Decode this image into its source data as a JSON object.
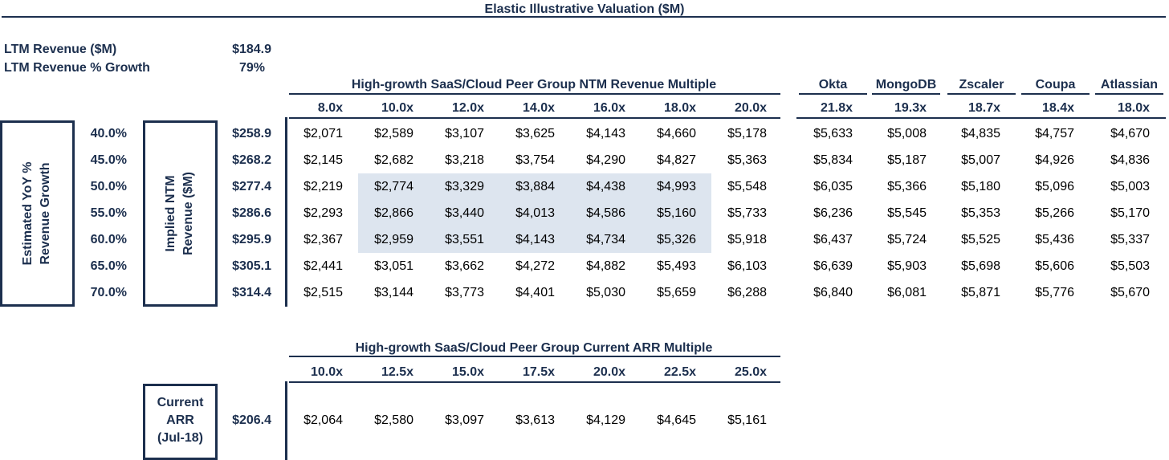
{
  "title": "Elastic Illustrative Valuation ($M)",
  "summary": {
    "ltm_revenue_label": "LTM Revenue ($M)",
    "ltm_revenue_value": "$184.9",
    "ltm_growth_label": "LTM Revenue % Growth",
    "ltm_growth_value": "79%"
  },
  "ntm": {
    "group_header": "High-growth SaaS/Cloud Peer Group NTM Revenue Multiple",
    "multiples": [
      "8.0x",
      "10.0x",
      "12.0x",
      "14.0x",
      "16.0x",
      "18.0x",
      "20.0x"
    ],
    "peers": [
      {
        "name": "Okta",
        "multiple": "21.8x"
      },
      {
        "name": "MongoDB",
        "multiple": "19.3x"
      },
      {
        "name": "Zscaler",
        "multiple": "18.7x"
      },
      {
        "name": "Coupa",
        "multiple": "18.4x"
      },
      {
        "name": "Atlassian",
        "multiple": "18.0x"
      }
    ],
    "growth_box_label_1": "Estimated YoY %",
    "growth_box_label_2": "Revenue Growth",
    "revenue_box_label_1": "Implied NTM",
    "revenue_box_label_2": "Revenue ($M)",
    "rows": [
      {
        "growth": "40.0%",
        "revenue": "$258.9",
        "values": [
          "$2,071",
          "$2,589",
          "$3,107",
          "$3,625",
          "$4,143",
          "$4,660",
          "$5,178"
        ],
        "peer_values": [
          "$5,633",
          "$5,008",
          "$4,835",
          "$4,757",
          "$4,670"
        ]
      },
      {
        "growth": "45.0%",
        "revenue": "$268.2",
        "values": [
          "$2,145",
          "$2,682",
          "$3,218",
          "$3,754",
          "$4,290",
          "$4,827",
          "$5,363"
        ],
        "peer_values": [
          "$5,834",
          "$5,187",
          "$5,007",
          "$4,926",
          "$4,836"
        ]
      },
      {
        "growth": "50.0%",
        "revenue": "$277.4",
        "values": [
          "$2,219",
          "$2,774",
          "$3,329",
          "$3,884",
          "$4,438",
          "$4,993",
          "$5,548"
        ],
        "peer_values": [
          "$6,035",
          "$5,366",
          "$5,180",
          "$5,096",
          "$5,003"
        ]
      },
      {
        "growth": "55.0%",
        "revenue": "$286.6",
        "values": [
          "$2,293",
          "$2,866",
          "$3,440",
          "$4,013",
          "$4,586",
          "$5,160",
          "$5,733"
        ],
        "peer_values": [
          "$6,236",
          "$5,545",
          "$5,353",
          "$5,266",
          "$5,170"
        ]
      },
      {
        "growth": "60.0%",
        "revenue": "$295.9",
        "values": [
          "$2,367",
          "$2,959",
          "$3,551",
          "$4,143",
          "$4,734",
          "$5,326",
          "$5,918"
        ],
        "peer_values": [
          "$6,437",
          "$5,724",
          "$5,525",
          "$5,436",
          "$5,337"
        ]
      },
      {
        "growth": "65.0%",
        "revenue": "$305.1",
        "values": [
          "$2,441",
          "$3,051",
          "$3,662",
          "$4,272",
          "$4,882",
          "$5,493",
          "$6,103"
        ],
        "peer_values": [
          "$6,639",
          "$5,903",
          "$5,698",
          "$5,606",
          "$5,503"
        ]
      },
      {
        "growth": "70.0%",
        "revenue": "$314.4",
        "values": [
          "$2,515",
          "$3,144",
          "$3,773",
          "$4,401",
          "$5,030",
          "$5,659",
          "$6,288"
        ],
        "peer_values": [
          "$6,840",
          "$6,081",
          "$5,871",
          "$5,776",
          "$5,670"
        ]
      }
    ]
  },
  "arr": {
    "group_header": "High-growth SaaS/Cloud Peer Group Current ARR Multiple",
    "multiples": [
      "10.0x",
      "12.5x",
      "15.0x",
      "17.5x",
      "20.0x",
      "22.5x",
      "25.0x"
    ],
    "box_label_1": "Current",
    "box_label_2": "ARR",
    "box_label_3": "(Jul-18)",
    "value": "$206.4",
    "values": [
      "$2,064",
      "$2,580",
      "$3,097",
      "$3,613",
      "$4,129",
      "$4,645",
      "$5,161"
    ]
  }
}
